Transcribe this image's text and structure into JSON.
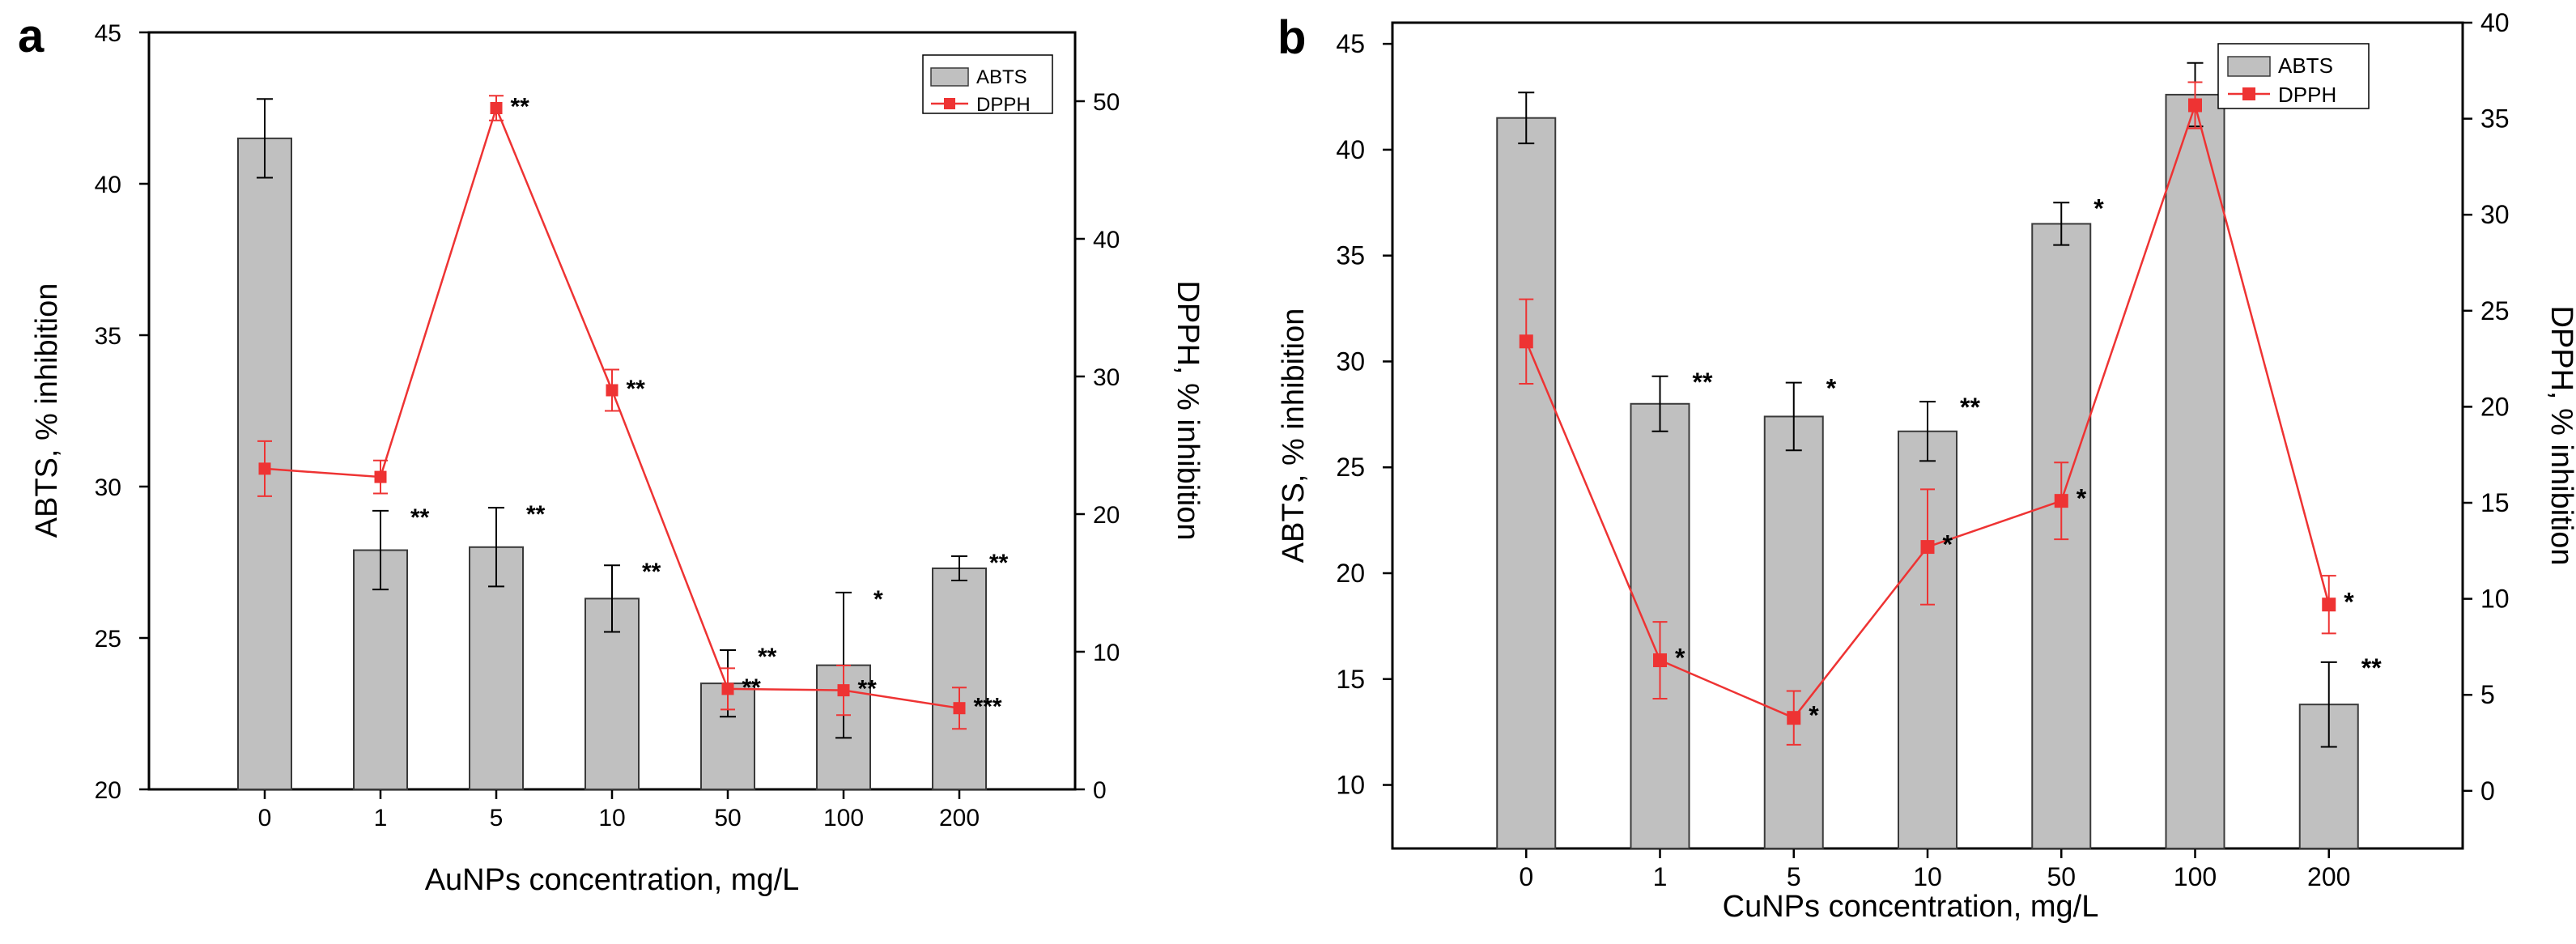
{
  "colors": {
    "bar_fill": "#c0c0c0",
    "bar_stroke": "#3a3a3a",
    "line": "#ee3333",
    "marker": "#ee3333",
    "axis": "#000000",
    "text": "#000000"
  },
  "chart_data": [
    {
      "type": "bar+line",
      "panel_label": "a",
      "categories": [
        "0",
        "1",
        "5",
        "10",
        "50",
        "100",
        "200"
      ],
      "xlabel": "AuNPs concentration, mg/L",
      "ylabel_left": "ABTS, % inhibition",
      "ylabel_right": "DPPH, % inhibition",
      "ylim_left": [
        20,
        45
      ],
      "yticks_left": [
        20,
        25,
        30,
        35,
        40,
        45
      ],
      "ylim_right": [
        0,
        55
      ],
      "yticks_right": [
        0,
        10,
        20,
        30,
        40,
        50
      ],
      "legend_position": "top-right",
      "grid": false,
      "series": [
        {
          "name": "ABTS",
          "kind": "bar",
          "axis": "left",
          "values": [
            41.5,
            27.9,
            28.0,
            26.3,
            23.5,
            24.1,
            27.3
          ],
          "errors": [
            1.3,
            1.3,
            1.3,
            1.1,
            1.1,
            2.4,
            0.4
          ],
          "significance": [
            "",
            "**",
            "**",
            "**",
            "**",
            "*",
            "**"
          ]
        },
        {
          "name": "DPPH",
          "kind": "line",
          "axis": "right",
          "values": [
            23.3,
            22.7,
            49.5,
            29.0,
            7.3,
            7.2,
            5.9
          ],
          "errors": [
            2.0,
            1.2,
            0.9,
            1.5,
            1.5,
            1.8,
            1.5
          ],
          "significance": [
            "",
            "",
            "**",
            "**",
            "**",
            "**",
            "***"
          ]
        }
      ]
    },
    {
      "type": "bar+line",
      "panel_label": "b",
      "categories": [
        "0",
        "1",
        "5",
        "10",
        "50",
        "100",
        "200"
      ],
      "xlabel": "CuNPs concentration, mg/L",
      "ylabel_left": "ABTS, % inhibition",
      "ylabel_right": "DPPH, % inhibition",
      "ylim_left": [
        7,
        46
      ],
      "yticks_left": [
        10,
        15,
        20,
        25,
        30,
        35,
        40,
        45
      ],
      "ylim_right": [
        -3,
        40
      ],
      "yticks_right": [
        0,
        5,
        10,
        15,
        20,
        25,
        30,
        35,
        40
      ],
      "legend_position": "top-right",
      "grid": false,
      "series": [
        {
          "name": "ABTS",
          "kind": "bar",
          "axis": "left",
          "values": [
            41.5,
            28.0,
            27.4,
            26.7,
            36.5,
            42.6,
            13.8
          ],
          "errors": [
            1.2,
            1.3,
            1.6,
            1.4,
            1.0,
            1.5,
            2.0
          ],
          "significance": [
            "",
            "**",
            "*",
            "**",
            "*",
            "*",
            "**"
          ]
        },
        {
          "name": "DPPH",
          "kind": "line",
          "axis": "right",
          "values": [
            23.4,
            6.8,
            3.8,
            12.7,
            15.1,
            35.7,
            9.7
          ],
          "errors": [
            2.2,
            2.0,
            1.4,
            3.0,
            2.0,
            1.2,
            1.5
          ],
          "significance": [
            "",
            "*",
            "*",
            "*",
            "*",
            "",
            "*"
          ]
        }
      ]
    }
  ]
}
